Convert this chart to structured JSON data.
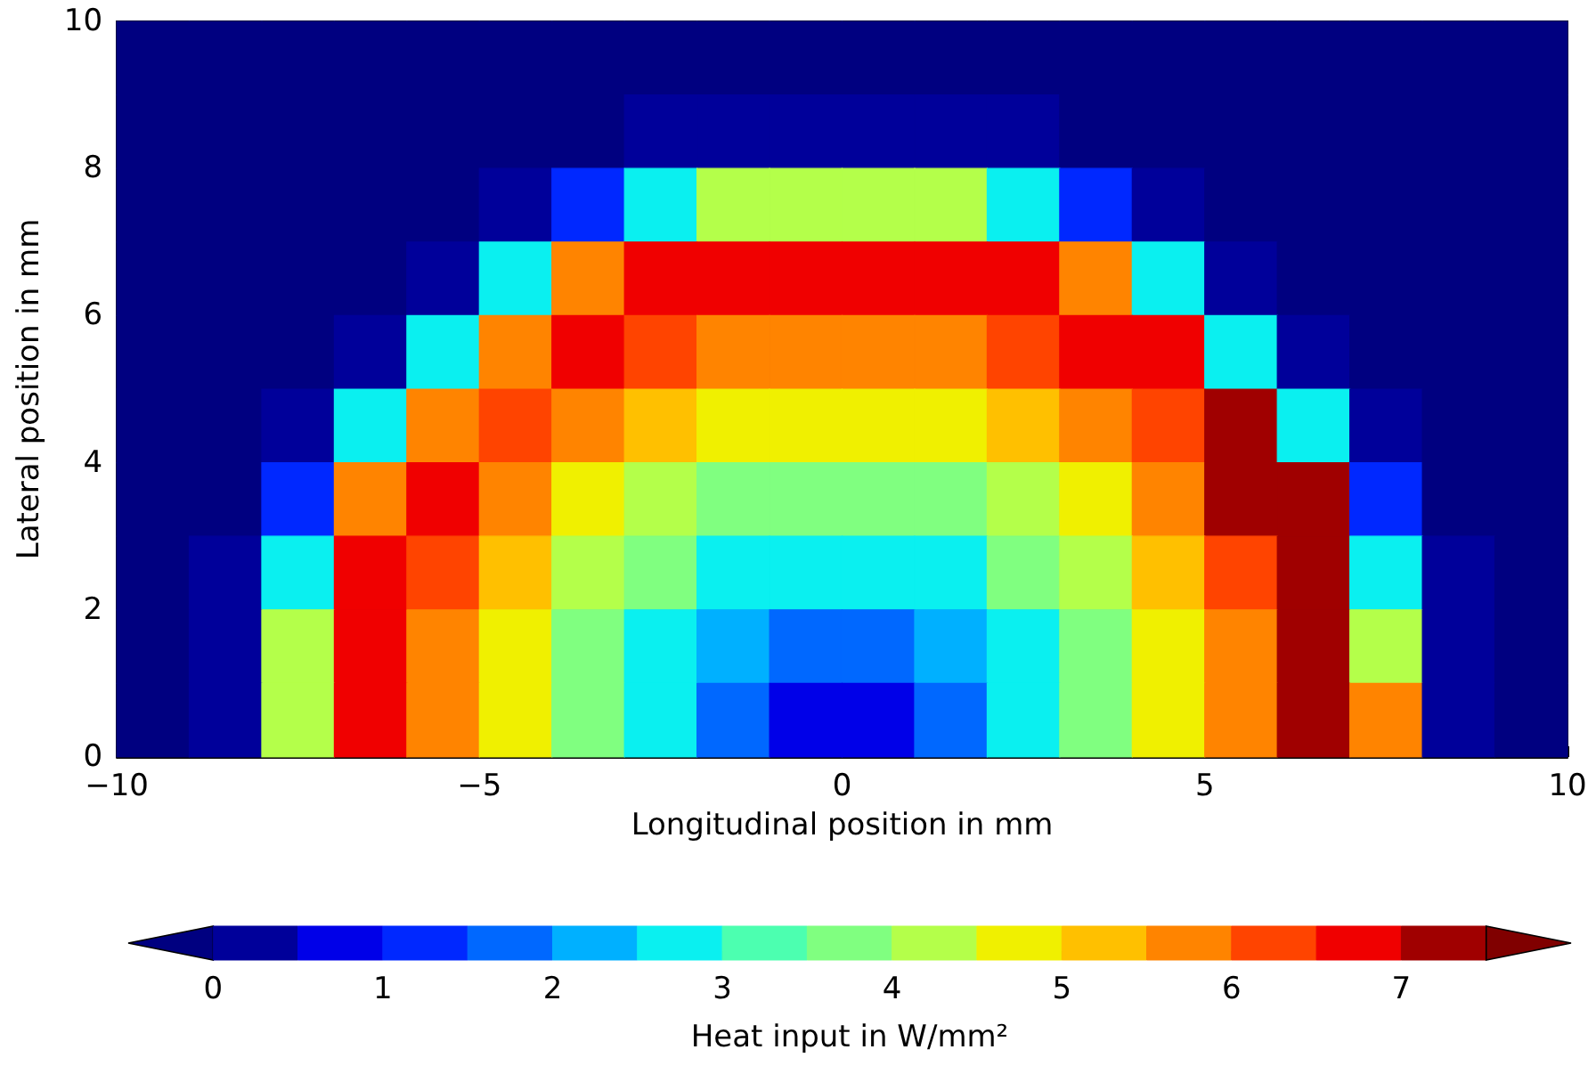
{
  "chart_data": {
    "type": "heatmap",
    "xlabel": "Longitudinal position in mm",
    "ylabel": "Lateral position in mm",
    "clabel": "Heat input in W/mm²",
    "xlim": [
      -10,
      10
    ],
    "xticks": [
      {
        "value": -10,
        "label": "−10"
      },
      {
        "value": -5,
        "label": "−5"
      },
      0,
      5,
      10
    ],
    "ylim": [
      0,
      10
    ],
    "yticks": [
      0,
      2,
      4,
      6,
      8,
      10
    ],
    "clim": [
      -0.5,
      8
    ],
    "cticks": [
      0,
      1,
      2,
      3,
      4,
      5,
      6,
      7
    ],
    "colors": [
      "#000080",
      "#00009a",
      "#0000e8",
      "#0028ff",
      "#0068ff",
      "#00b0ff",
      "#0af0f0",
      "#4cffb0",
      "#80ff80",
      "#b4ff4a",
      "#f0f000",
      "#ffc000",
      "#ff8400",
      "#ff4400",
      "#f00000",
      "#a00000",
      "#800000"
    ],
    "x": [
      -9.5,
      -8.5,
      -7.5,
      -6.5,
      -5.5,
      -4.5,
      -3.5,
      -2.5,
      -1.5,
      -0.5,
      0.5,
      1.5,
      2.5,
      3.5,
      4.5,
      5.5,
      6.5,
      7.5,
      8.5,
      9.5
    ],
    "y": [
      9.5,
      8.5,
      7.5,
      6.5,
      5.5,
      4.5,
      3.5,
      2.5,
      1.5,
      0.5
    ],
    "cells": [
      [
        -0.25,
        -0.25,
        -0.25,
        -0.25,
        -0.25,
        -0.25,
        -0.25,
        -0.25,
        -0.25,
        -0.25,
        -0.25,
        -0.25,
        -0.25,
        -0.25,
        -0.25,
        -0.25,
        -0.25,
        -0.25,
        -0.25,
        -0.25
      ],
      [
        -0.25,
        -0.25,
        -0.25,
        -0.25,
        -0.25,
        -0.25,
        -0.25,
        0.25,
        0.25,
        0.25,
        0.25,
        0.25,
        0.25,
        -0.25,
        -0.25,
        -0.25,
        -0.25,
        -0.25,
        -0.25,
        -0.25
      ],
      [
        -0.25,
        -0.25,
        -0.25,
        -0.25,
        -0.25,
        0.25,
        1.25,
        2.75,
        4.25,
        4.25,
        4.25,
        4.25,
        2.75,
        1.25,
        0.25,
        -0.25,
        -0.25,
        -0.25,
        -0.25,
        -0.25
      ],
      [
        -0.25,
        -0.25,
        -0.25,
        -0.25,
        0.25,
        2.75,
        5.75,
        6.75,
        6.75,
        6.75,
        6.75,
        6.75,
        6.75,
        5.75,
        2.75,
        0.25,
        -0.25,
        -0.25,
        -0.25,
        -0.25
      ],
      [
        -0.25,
        -0.25,
        -0.25,
        0.25,
        2.75,
        5.75,
        6.75,
        6.25,
        5.75,
        5.75,
        5.75,
        5.75,
        6.25,
        6.75,
        6.75,
        2.75,
        0.25,
        -0.25,
        -0.25,
        -0.25
      ],
      [
        -0.25,
        -0.25,
        0.25,
        2.75,
        5.75,
        6.25,
        5.75,
        5.25,
        4.75,
        4.75,
        4.75,
        4.75,
        5.25,
        5.75,
        6.25,
        7.25,
        2.75,
        0.25,
        -0.25,
        -0.25
      ],
      [
        -0.25,
        -0.25,
        1.25,
        5.75,
        6.75,
        5.75,
        4.75,
        4.25,
        3.75,
        3.75,
        3.75,
        3.75,
        4.25,
        4.75,
        5.75,
        7.25,
        7.25,
        1.25,
        -0.25,
        -0.25
      ],
      [
        -0.25,
        0.25,
        2.75,
        6.75,
        6.25,
        5.25,
        4.25,
        3.75,
        2.75,
        2.75,
        2.75,
        2.75,
        3.75,
        4.25,
        5.25,
        6.25,
        7.25,
        2.75,
        0.25,
        -0.25
      ],
      [
        -0.25,
        0.25,
        4.25,
        6.75,
        5.75,
        4.75,
        3.75,
        2.75,
        2.25,
        1.75,
        1.75,
        2.25,
        2.75,
        3.75,
        4.75,
        5.75,
        7.25,
        4.25,
        0.25,
        -0.25
      ],
      [
        -0.25,
        0.25,
        4.25,
        6.75,
        5.75,
        4.75,
        3.75,
        2.75,
        1.75,
        0.75,
        0.75,
        1.75,
        2.75,
        3.75,
        4.75,
        5.75,
        7.25,
        5.75,
        0.25,
        -0.25
      ]
    ]
  }
}
